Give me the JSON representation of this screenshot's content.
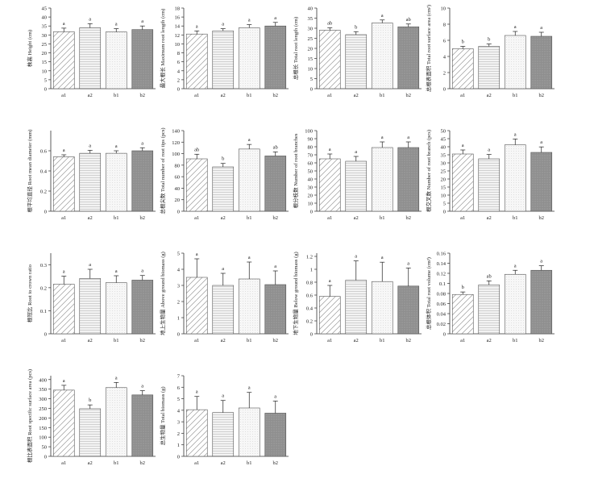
{
  "chart_data": [
    {
      "type": "bar",
      "ylabel": "株高 Height (cm)",
      "categories": [
        "a1",
        "a2",
        "b1",
        "b2"
      ],
      "values": [
        31.8,
        34.0,
        31.7,
        33.0
      ],
      "errors": [
        2.0,
        2.3,
        1.8,
        2.0
      ],
      "letters": [
        "a",
        "a",
        "a",
        "a"
      ],
      "ylim": [
        0,
        45
      ],
      "yticks": [
        0,
        5,
        10,
        15,
        20,
        25,
        30,
        35,
        40,
        45
      ]
    },
    {
      "type": "bar",
      "ylabel": "最大根长 Maximum root length (cm)",
      "categories": [
        "a1",
        "a2",
        "b1",
        "b2"
      ],
      "values": [
        12.2,
        12.9,
        13.6,
        14.0
      ],
      "errors": [
        0.7,
        0.5,
        0.7,
        0.8
      ],
      "letters": [
        "a",
        "a",
        "a",
        "a"
      ],
      "ylim": [
        0,
        18
      ],
      "yticks": [
        0,
        2,
        4,
        6,
        8,
        10,
        12,
        14,
        16,
        18
      ]
    },
    {
      "type": "bar",
      "ylabel": "总根长 Total root length (cm)",
      "categories": [
        "a1",
        "a2",
        "b1",
        "b2"
      ],
      "values": [
        29.0,
        26.8,
        32.6,
        30.7
      ],
      "errors": [
        1.2,
        1.5,
        1.5,
        1.4
      ],
      "letters": [
        "ab",
        "b",
        "a",
        "ab"
      ],
      "ylim": [
        0,
        40
      ],
      "yticks": [
        0,
        5,
        10,
        15,
        20,
        25,
        30,
        35,
        40
      ]
    },
    {
      "type": "bar",
      "ylabel": "总根表面积 Total root surface area (cm²)",
      "categories": [
        "a1",
        "a2",
        "b1",
        "b2"
      ],
      "values": [
        4.95,
        5.25,
        6.6,
        6.5
      ],
      "errors": [
        0.3,
        0.3,
        0.5,
        0.5
      ],
      "letters": [
        "b",
        "b",
        "a",
        "a"
      ],
      "ylim": [
        0,
        10
      ],
      "yticks": [
        0,
        2,
        4,
        6,
        8,
        10
      ]
    },
    {
      "type": "bar",
      "ylabel": "根平均直径 Root mean diameter (mm)",
      "categories": [
        "a1",
        "a2",
        "b1",
        "b2"
      ],
      "values": [
        0.54,
        0.575,
        0.575,
        0.6
      ],
      "errors": [
        0.02,
        0.03,
        0.025,
        0.03
      ],
      "letters": [
        "a",
        "a",
        "a",
        "a"
      ],
      "ylim": [
        0,
        0.8
      ],
      "yticks": [
        0,
        0.2,
        0.4,
        0.6
      ]
    },
    {
      "type": "bar",
      "ylabel": "总根尖数 Total number of root tips (pcs)",
      "categories": [
        "a1",
        "a2",
        "b1",
        "b2"
      ],
      "values": [
        91,
        77,
        108,
        96
      ],
      "errors": [
        8,
        6,
        8,
        7
      ],
      "letters": [
        "ab",
        "b",
        "a",
        "ab"
      ],
      "ylim": [
        0,
        140
      ],
      "yticks": [
        0,
        20,
        40,
        60,
        80,
        100,
        120,
        140
      ]
    },
    {
      "type": "bar",
      "ylabel": "根分枝数 Number of root branches",
      "categories": [
        "a1",
        "a2",
        "b1",
        "b2"
      ],
      "values": [
        65,
        62,
        79,
        79
      ],
      "errors": [
        6,
        6,
        7,
        7
      ],
      "letters": [
        "a",
        "a",
        "a",
        "a"
      ],
      "ylim": [
        0,
        100
      ],
      "yticks": [
        0,
        10,
        20,
        30,
        40,
        50,
        60,
        70,
        80,
        90,
        100
      ]
    },
    {
      "type": "bar",
      "ylabel": "根交叉数 Number of root branch (pcs)",
      "categories": [
        "a1",
        "a2",
        "b1",
        "b2"
      ],
      "values": [
        35.5,
        32.5,
        41.2,
        36.5
      ],
      "errors": [
        2.5,
        2.7,
        3.6,
        3.4
      ],
      "letters": [
        "a",
        "a",
        "a",
        "a"
      ],
      "ylim": [
        0,
        50
      ],
      "yticks": [
        0,
        5,
        10,
        15,
        20,
        25,
        30,
        35,
        40,
        45,
        50
      ]
    },
    {
      "type": "bar",
      "ylabel": "根冠比 Root to crown ratio",
      "categories": [
        "a1",
        "a2",
        "b1",
        "b2"
      ],
      "values": [
        0.215,
        0.24,
        0.222,
        0.233
      ],
      "errors": [
        0.035,
        0.04,
        0.03,
        0.02
      ],
      "letters": [
        "a",
        "a",
        "a",
        "a"
      ],
      "ylim": [
        0,
        0.35
      ],
      "yticks": [
        0,
        0.1,
        0.2,
        0.3
      ]
    },
    {
      "type": "bar",
      "ylabel": "地上生物量 Above ground biomass (g)",
      "categories": [
        "a1",
        "a2",
        "b1",
        "b2"
      ],
      "values": [
        3.5,
        3.0,
        3.4,
        3.05
      ],
      "errors": [
        1.15,
        0.75,
        1.05,
        0.85
      ],
      "letters": [
        "a",
        "a",
        "a",
        "a"
      ],
      "ylim": [
        0,
        5
      ],
      "yticks": [
        0,
        1,
        2,
        3,
        4,
        5
      ]
    },
    {
      "type": "bar",
      "ylabel": "地下生物量 Below ground biomass (g)",
      "categories": [
        "a1",
        "a2",
        "b1",
        "b2"
      ],
      "values": [
        0.58,
        0.83,
        0.81,
        0.74
      ],
      "errors": [
        0.17,
        0.3,
        0.3,
        0.28
      ],
      "letters": [
        "a",
        "a",
        "a",
        "a"
      ],
      "ylim": [
        0,
        1.25
      ],
      "yticks": [
        0,
        0.2,
        0.4,
        0.6,
        0.8,
        1.0,
        1.2
      ]
    },
    {
      "type": "bar",
      "ylabel": "总根体积 Total root volume (cm³)",
      "categories": [
        "a1",
        "a2",
        "b1",
        "b2"
      ],
      "values": [
        0.078,
        0.097,
        0.118,
        0.126
      ],
      "errors": [
        0.005,
        0.008,
        0.008,
        0.009
      ],
      "letters": [
        "b",
        "ab",
        "a",
        "a"
      ],
      "ylim": [
        0,
        0.16
      ],
      "yticks": [
        0,
        0.02,
        0.04,
        0.06,
        0.08,
        0.1,
        0.12,
        0.14,
        0.16
      ]
    },
    {
      "type": "bar",
      "ylabel": "根比表面积 Root specific surface area (pcs)",
      "categories": [
        "a1",
        "a2",
        "b1",
        "b2"
      ],
      "values": [
        345,
        248,
        358,
        320
      ],
      "errors": [
        25,
        20,
        27,
        22
      ],
      "letters": [
        "a",
        "b",
        "a",
        "a"
      ],
      "ylim": [
        0,
        420
      ],
      "yticks": [
        0,
        50,
        100,
        150,
        200,
        250,
        300,
        350,
        400
      ]
    },
    {
      "type": "bar",
      "ylabel": "总生物量 Total biomass (g)",
      "categories": [
        "a1",
        "a2",
        "b1",
        "b2"
      ],
      "values": [
        4.05,
        3.8,
        4.2,
        3.75
      ],
      "errors": [
        1.15,
        1.05,
        1.35,
        1.05
      ],
      "letters": [
        "a",
        "a",
        "a",
        "a"
      ],
      "ylim": [
        0,
        7
      ],
      "yticks": [
        0,
        1,
        2,
        3,
        4,
        5,
        6,
        7
      ]
    }
  ]
}
